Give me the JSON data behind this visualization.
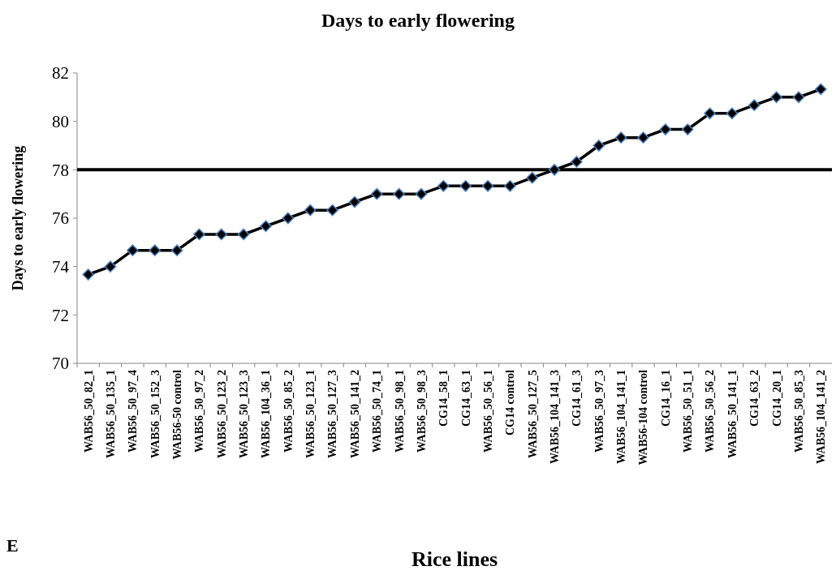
{
  "chart_data": {
    "type": "line",
    "title": "Days to early flowering",
    "xlabel": "Rice lines",
    "ylabel": "Days to early flowering",
    "categories": [
      "WAB56_50_82_1",
      "WAB56_50_135_1",
      "WAB56_50_97_4",
      "WAB56_50_152_3",
      "WAB56-50 control",
      "WAB56_50_97_2",
      "WAB56_50_123_2",
      "WAB56_50_123_3",
      "WAB56_104_36_1",
      "WAB56_50_85_2",
      "WAB56_50_123_1",
      "WAB56_50_127_3",
      "WAB56_50_141_2",
      "WAB56_50_74_1",
      "WAB56_50_98_1",
      "WAB56_50_98_3",
      "CG14_58_1",
      "CG14_63_1",
      "WAB56_50_56_1",
      "CG14 control",
      "WAB56_50_127_5",
      "WAB56_104_141_3",
      "CG14_61_3",
      "WAB56_50_97_3",
      "WAB56_104_141_1",
      "WAB56-104 control",
      "CG14_16_1",
      "WAB56_50_51_1",
      "WAB56_50_56_2",
      "WAB56_50_141_1",
      "CG14_63_2",
      "CG14_20_1",
      "WAB56_50_85_3",
      "WAB56_104_141_2"
    ],
    "series": [
      {
        "color": "#000000",
        "values": [
          73.67,
          74.0,
          74.67,
          74.67,
          74.67,
          75.33,
          75.33,
          75.33,
          75.67,
          76.0,
          76.33,
          76.33,
          76.67,
          77.0,
          77.0,
          77.0,
          77.33,
          77.33,
          77.33,
          77.33,
          77.67,
          78.0,
          78.33,
          79.0,
          79.33,
          79.33,
          79.67,
          79.67,
          80.33,
          80.33,
          80.67,
          81.0,
          81.0,
          81.33
        ]
      }
    ],
    "ylim": [
      70,
      82
    ],
    "yticks": [
      70,
      72,
      74,
      76,
      78,
      80,
      82
    ],
    "marker": "diamond",
    "line_style": "solid",
    "grid": false,
    "ref_lines": [
      {
        "axis": "y",
        "value": 78,
        "color": "#000000"
      }
    ],
    "annotations": [
      "E"
    ]
  }
}
